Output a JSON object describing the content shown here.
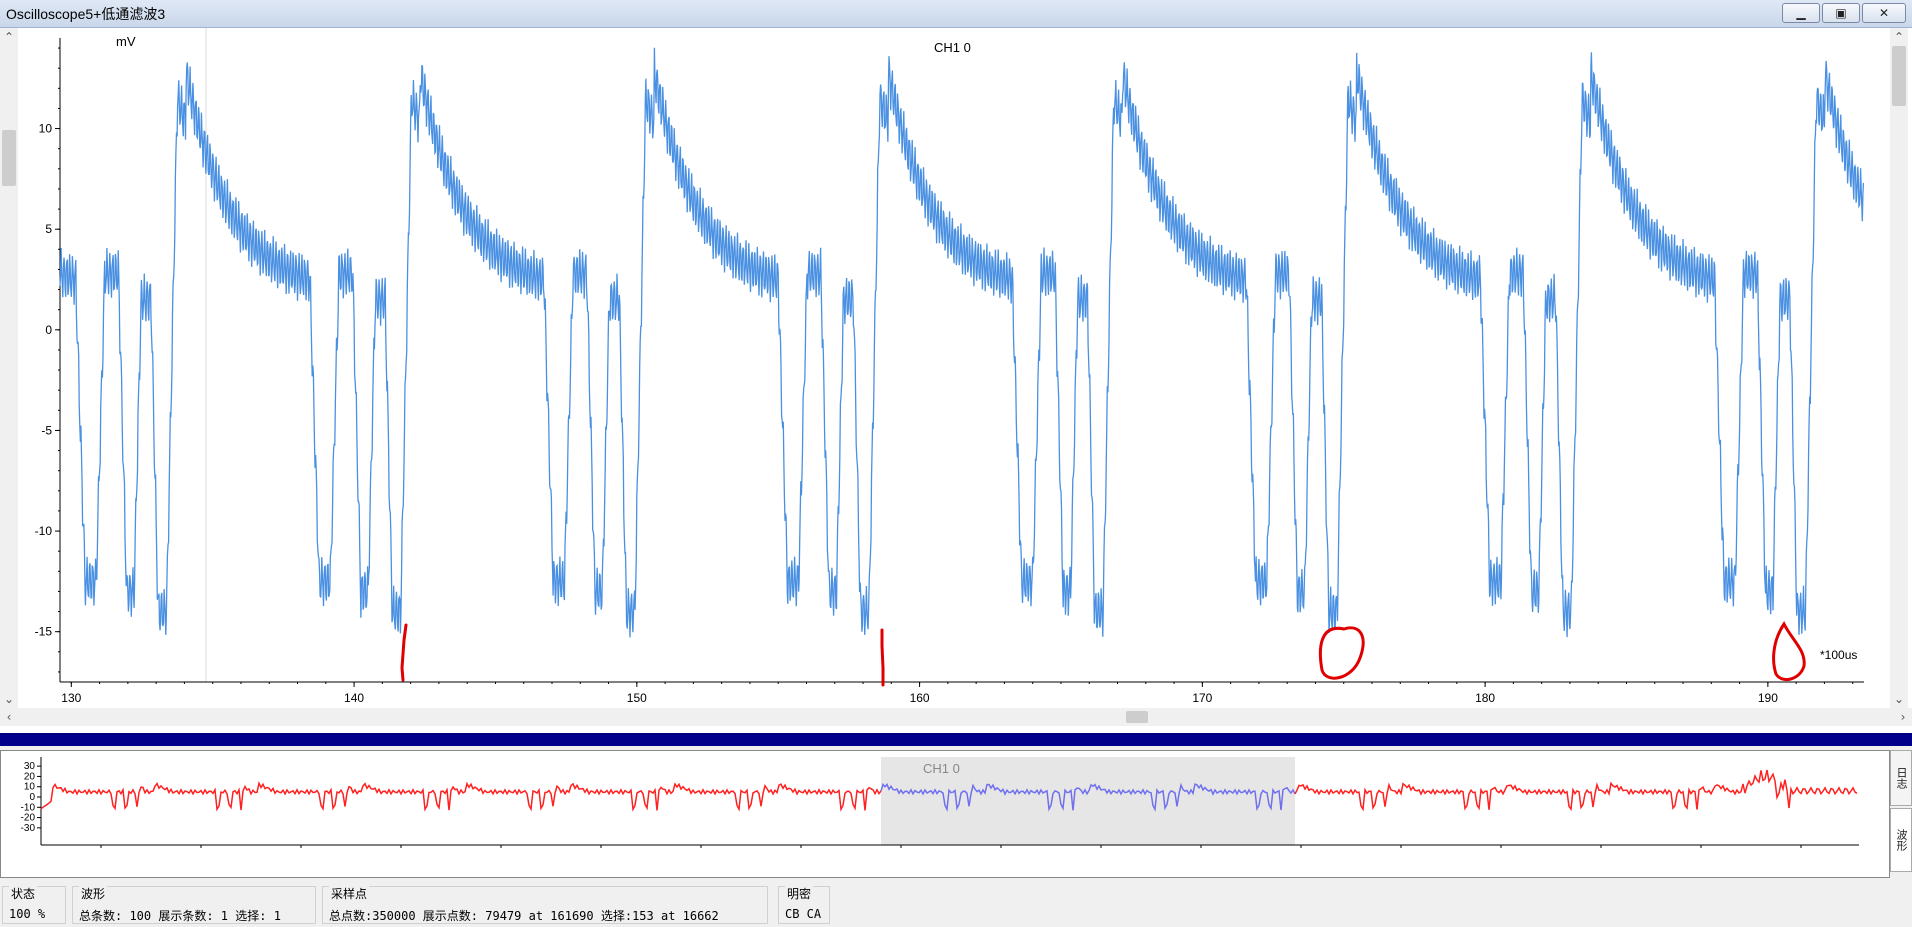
{
  "window": {
    "title": "Oscilloscope5+低通滤波3",
    "min_label": "▁",
    "max_label": "▣",
    "close_label": "✕"
  },
  "main_plot": {
    "y_unit": "mV",
    "channel": "CH1 0",
    "x_unit": "*100us",
    "y_ticks": [
      "10",
      "5",
      "0",
      "-5",
      "-10",
      "-15"
    ],
    "x_ticks": [
      "130",
      "140",
      "150",
      "160",
      "170",
      "180",
      "190"
    ]
  },
  "chart_data": [
    {
      "type": "line",
      "title": "CH1 0",
      "ylabel": "mV",
      "xlabel": "*100us",
      "xlim": [
        129.6,
        193.4
      ],
      "ylim": [
        -17.5,
        14.5
      ],
      "line_color": "#4a90e2",
      "series": [
        {
          "x": [],
          "y": []
        }
      ],
      "annotations": [
        "|",
        "|",
        "0",
        "0"
      ]
    },
    {
      "type": "line",
      "title": "CH1 0",
      "y_ticks": [
        "30",
        "20",
        "10",
        "0",
        "-10",
        "-20",
        "-30"
      ],
      "ylim": [
        -35,
        35
      ],
      "series_color": "#ff2020",
      "selection_color": "#7070ee",
      "selection_fill": "#e6e6e6"
    }
  ],
  "overview": {
    "channel": "CH1 0"
  },
  "side_tabs": {
    "tab1": "日志",
    "tab2": "波形"
  },
  "status": {
    "state_title": "状态",
    "state_value": "100 %",
    "wave_title": "波形",
    "wave_value": "总条数: 100 展示条数: 1 选择: 1",
    "sample_title": "采样点",
    "sample_value": "总点数:350000 展示点数: 79479 at 161690 选择:153 at 16662",
    "density_title": "明密",
    "density_value": "CB CA"
  }
}
